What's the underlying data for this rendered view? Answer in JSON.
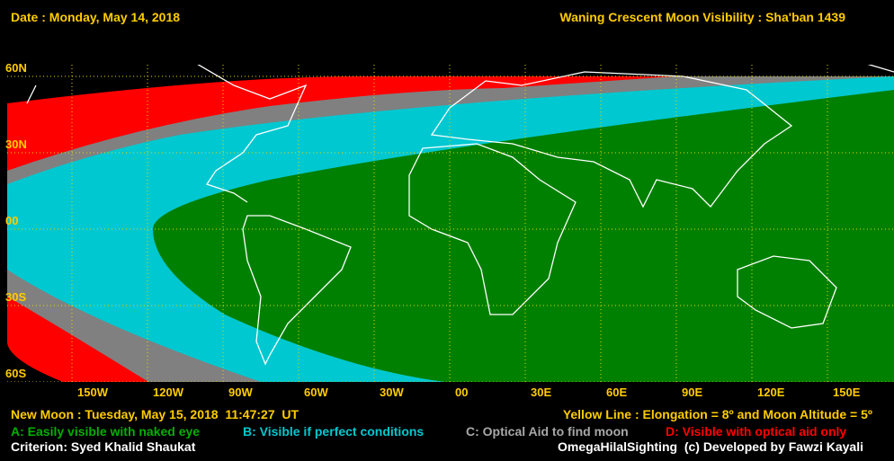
{
  "header": {
    "date": "Date : Monday, May 14, 2018",
    "title": "Waning Crescent Moon Visibility : Sha'ban 1439"
  },
  "map": {
    "latitude_labels": [
      "60N",
      "30N",
      "00",
      "30S",
      "60S"
    ],
    "longitude_labels": [
      "150W",
      "120W",
      "90W",
      "60W",
      "30W",
      "00",
      "30E",
      "60E",
      "90E",
      "120E",
      "150E"
    ]
  },
  "footer": {
    "new_moon": "New Moon : Tuesday, May 15, 2018  11:47:27  UT",
    "yellow_line": "Yellow Line : Elongation = 8º and Moon Altitude = 5º",
    "criterion": "Criterion: Syed Khalid Shaukat",
    "credit": "OmegaHilalSighting  (c) Developed by Fawzi Kayali"
  },
  "legend": [
    {
      "text": "A: Easily visible with naked eye",
      "color": "#008000"
    },
    {
      "text": "B: Visible if perfect conditions",
      "color": "#00c8d0"
    },
    {
      "text": "C: Optical Aid to find moon",
      "color": "#808080"
    },
    {
      "text": "D: Visible with optical aid only",
      "color": "#ff0000"
    }
  ]
}
